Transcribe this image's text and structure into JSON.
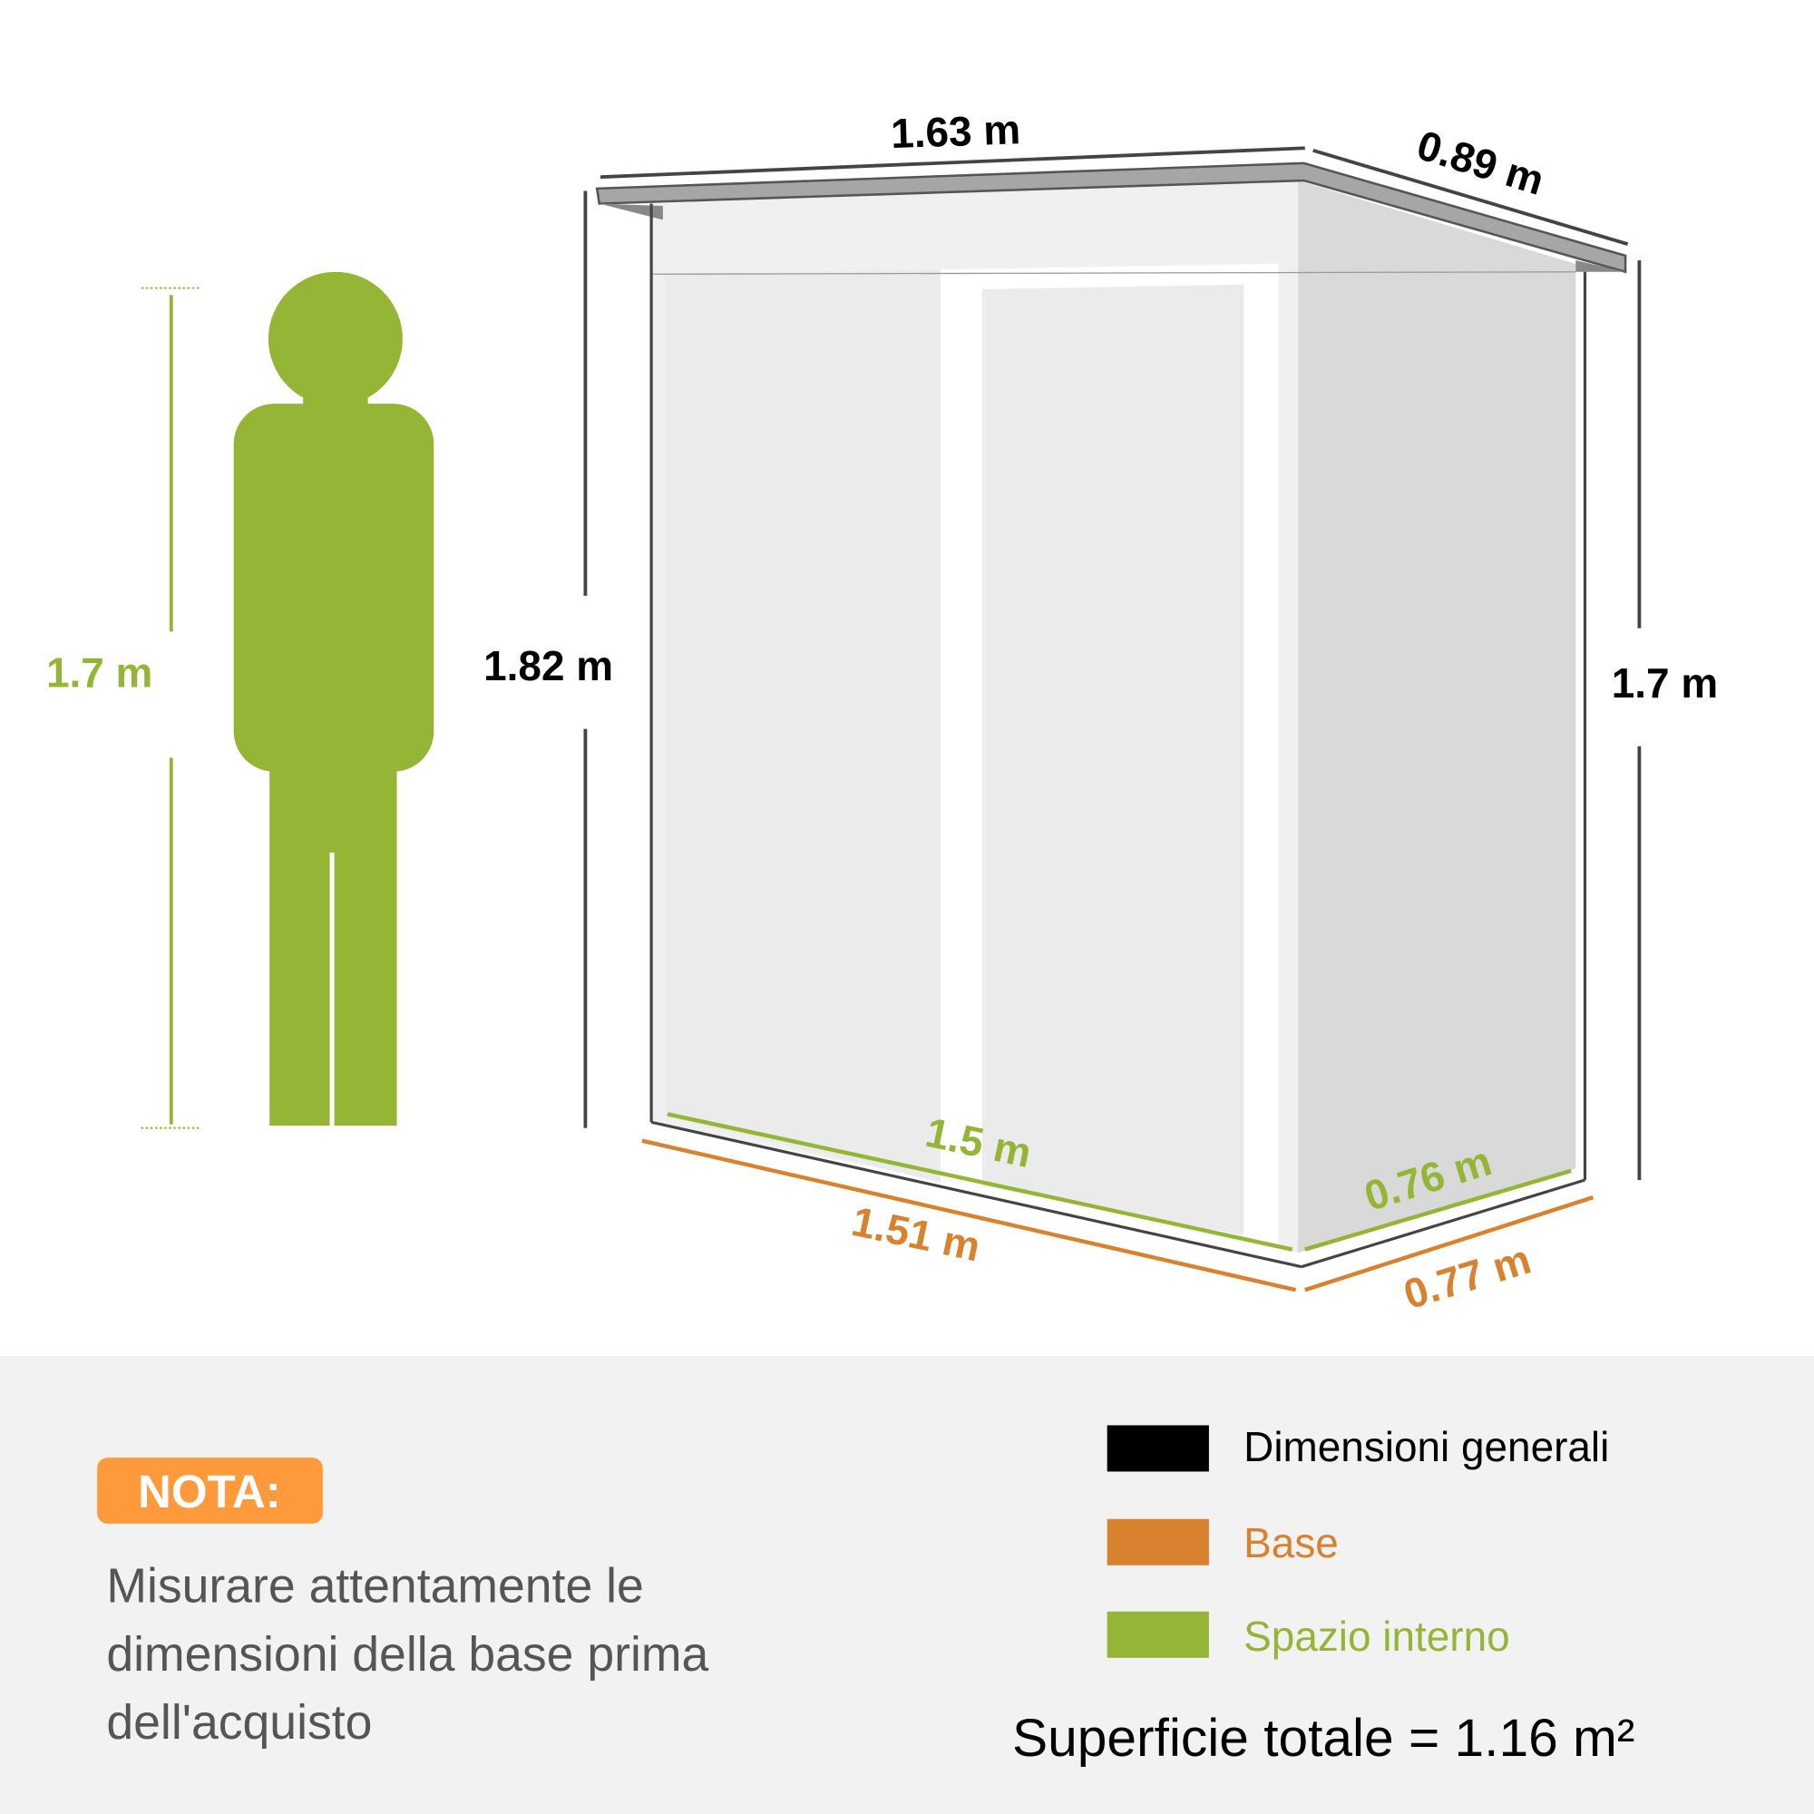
{
  "colors": {
    "general": "#000000",
    "base": "#d8812e",
    "interior": "#95b536",
    "note_badge": "#ff9a3c",
    "panel_bg": "#f2f2f2"
  },
  "person": {
    "height_label": "1.7 m"
  },
  "shed": {
    "roof_width": "1.63 m",
    "roof_depth": "0.89 m",
    "front_height": "1.82 m",
    "back_height": "1.7 m",
    "interior_width": "1.5 m",
    "interior_depth": "0.76 m",
    "base_width": "1.51 m",
    "base_depth": "0.77 m"
  },
  "note": {
    "badge": "NOTA:",
    "lines": [
      "Misurare attentamente le",
      "dimensioni della base prima",
      "dell'acquisto"
    ]
  },
  "legend": [
    {
      "label": "Dimensioni generali",
      "color": "#000000"
    },
    {
      "label": "Base",
      "color": "#d8812e"
    },
    {
      "label": "Spazio interno",
      "color": "#95b536"
    }
  ],
  "total_area": "Superficie totale = 1.16 m²"
}
